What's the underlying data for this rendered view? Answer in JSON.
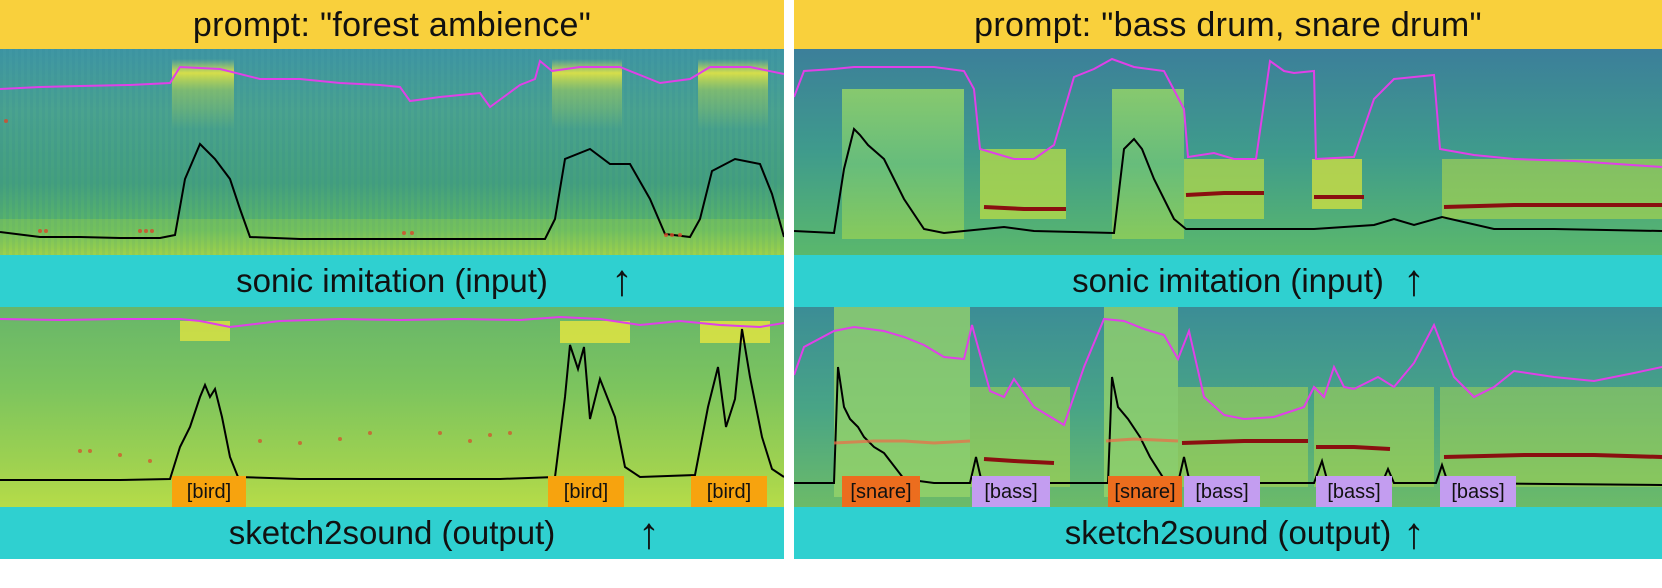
{
  "panels": [
    {
      "prompt": "prompt: \"forest ambience\"",
      "input_label": "sonic imitation (input)",
      "output_label": "sketch2sound (output)",
      "input_tags": [],
      "output_tags": [
        {
          "text": "[bird]",
          "color": "#f7a30e"
        },
        {
          "text": "[bird]",
          "color": "#f7a30e"
        },
        {
          "text": "[bird]",
          "color": "#f7a30e"
        }
      ]
    },
    {
      "prompt": "prompt: \"bass drum, snare drum\"",
      "input_label": "sonic imitation (input)",
      "output_label": "sketch2sound (output)",
      "input_tags": [],
      "output_tags": [
        {
          "text": "[snare]",
          "color": "#ec6d1e"
        },
        {
          "text": "[bass]",
          "color": "#c39df0"
        },
        {
          "text": "[snare]",
          "color": "#ec6d1e"
        },
        {
          "text": "[bass]",
          "color": "#c39df0"
        },
        {
          "text": "[bass]",
          "color": "#c39df0"
        },
        {
          "text": "[bass]",
          "color": "#c39df0"
        }
      ]
    }
  ],
  "icons": {
    "arrow": "arrow-up-icon"
  },
  "colors": {
    "prompt_bar": "#f9d03c",
    "label_bar": "#2fd0d0",
    "pitch_curve": "#e040e8",
    "loudness_curve": "#000000",
    "spectrogram_low": "#1f6e8c",
    "spectrogram_high": "#f4f02a"
  }
}
